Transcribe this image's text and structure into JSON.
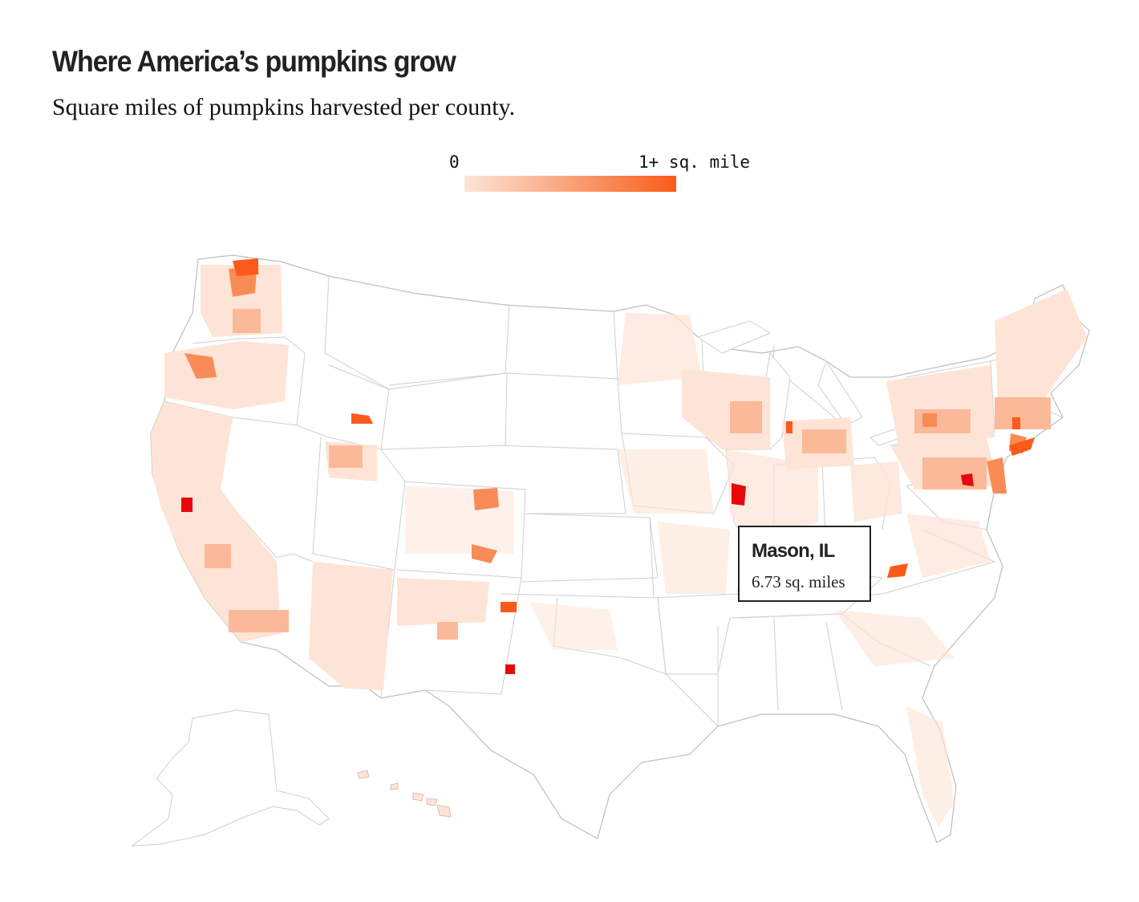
{
  "headline": "Where America’s pumpkins grow",
  "subheadline": "Square miles of pumpkins harvested per county.",
  "legend": {
    "min_label": "0",
    "max_label": "1+ sq. mile",
    "colors": [
      "#fde4d6",
      "#fbb999",
      "#f98b57",
      "#fb5a1a"
    ],
    "peak_color": "#e8080c"
  },
  "tooltip": {
    "county": "Mason, IL",
    "value": "6.73 sq. miles"
  },
  "map": {
    "projection": "Albers USA (lower 48 + Alaska + Hawaii insets)",
    "border_color": "#c9c9c9",
    "highlighted_counties": [
      "Mason, IL"
    ]
  }
}
